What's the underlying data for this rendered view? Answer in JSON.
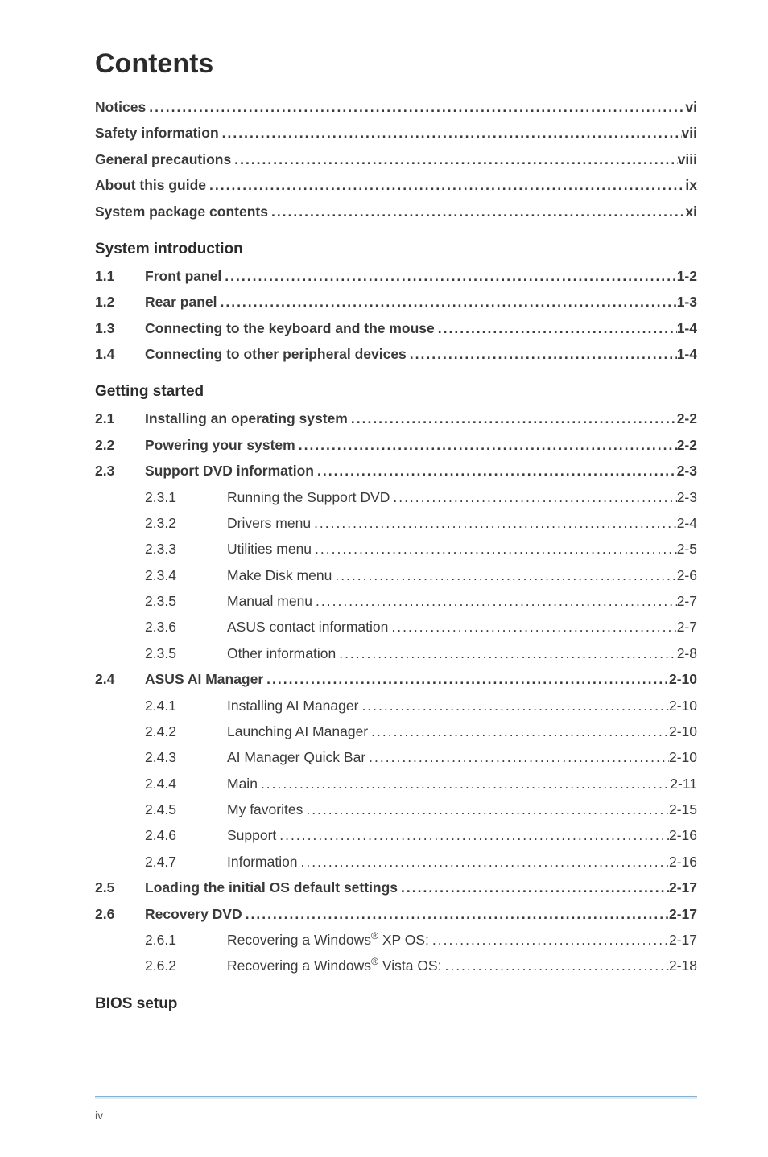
{
  "title": "Contents",
  "page_number": "iv",
  "colors": {
    "text": "#3a3a3a",
    "heading": "#2b2b2b",
    "rule_top": "#6fb7e6",
    "rule_bottom": "#d9ecf8",
    "background": "#ffffff"
  },
  "typography": {
    "title_fontsize": 34,
    "section_fontsize": 19,
    "body_fontsize": 17.5,
    "footer_fontsize": 14,
    "font_family": "Arial"
  },
  "front": [
    {
      "label": "Notices",
      "page": "vi"
    },
    {
      "label": "Safety information",
      "page": "vii"
    },
    {
      "label": "General precautions",
      "page": "viii"
    },
    {
      "label": "About this guide",
      "page": "ix"
    },
    {
      "label": "System package contents",
      "page": "xi"
    }
  ],
  "sections": [
    {
      "heading": "System introduction",
      "items": [
        {
          "num": "1.1",
          "label": "Front panel",
          "page": "1-2",
          "bold": true
        },
        {
          "num": "1.2",
          "label": "Rear panel",
          "page": "1-3",
          "bold": true
        },
        {
          "num": "1.3",
          "label": "Connecting to the keyboard and the mouse",
          "page": "1-4",
          "bold": true
        },
        {
          "num": "1.4",
          "label": "Connecting to other peripheral devices",
          "page": "1-4",
          "bold": true
        }
      ]
    },
    {
      "heading": "Getting started",
      "items": [
        {
          "num": "2.1",
          "label": "Installing an operating system",
          "page": "2-2",
          "bold": true
        },
        {
          "num": "2.2",
          "label": "Powering your system",
          "page": "2-2",
          "bold": true
        },
        {
          "num": "2.3",
          "label": "Support DVD information",
          "page": "2-3",
          "bold": true
        },
        {
          "sub": "2.3.1",
          "label": "Running the Support DVD",
          "page": "2-3"
        },
        {
          "sub": "2.3.2",
          "label": "Drivers menu",
          "page": "2-4"
        },
        {
          "sub": "2.3.3",
          "label": "Utilities menu",
          "page": "2-5"
        },
        {
          "sub": "2.3.4",
          "label": "Make Disk menu",
          "page": "2-6"
        },
        {
          "sub": "2.3.5",
          "label": "Manual menu",
          "page": "2-7"
        },
        {
          "sub": "2.3.6",
          "label": "ASUS contact information",
          "page": "2-7"
        },
        {
          "sub": "2.3.5",
          "label": "Other information",
          "page": "2-8"
        },
        {
          "num": "2.4",
          "label": "ASUS AI Manager",
          "page": "2-10",
          "bold": true
        },
        {
          "sub": "2.4.1",
          "label": "Installing AI Manager",
          "page": "2-10"
        },
        {
          "sub": "2.4.2",
          "label": "Launching AI Manager",
          "page": "2-10"
        },
        {
          "sub": "2.4.3",
          "label": "AI Manager Quick Bar",
          "page": "2-10"
        },
        {
          "sub": "2.4.4",
          "label": "Main",
          "page": "2-11"
        },
        {
          "sub": "2.4.5",
          "label": "My favorites",
          "page": "2-15"
        },
        {
          "sub": "2.4.6",
          "label": "Support",
          "page": "2-16"
        },
        {
          "sub": "2.4.7",
          "label": "Information",
          "page": "2-16"
        },
        {
          "num": "2.5",
          "label": "Loading the initial OS default settings",
          "page": "2-17",
          "bold": true
        },
        {
          "num": "2.6",
          "label": "Recovery DVD",
          "page": "2-17",
          "bold": true
        },
        {
          "sub": "2.6.1",
          "label_html": "Recovering a Windows<sup>®</sup> XP OS:",
          "page": "2-17"
        },
        {
          "sub": "2.6.2",
          "label_html": "Recovering a Windows<sup>®</sup> Vista OS:",
          "page": "2-18"
        }
      ]
    },
    {
      "heading": "BIOS setup",
      "items": []
    }
  ]
}
